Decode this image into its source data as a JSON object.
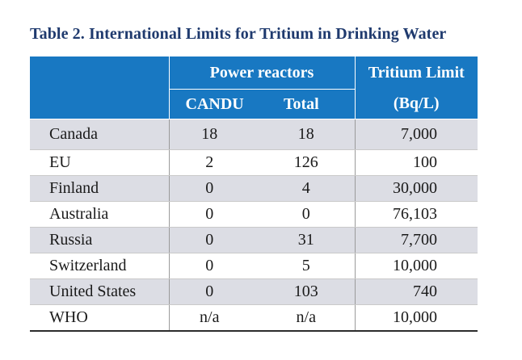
{
  "caption": "Table 2.  International Limits for Tritium in Drinking Water",
  "header": {
    "group_label": "Power reactors",
    "candu_label": "CANDU",
    "total_label": "Total",
    "limit_label_line1": "Tritium Limit",
    "limit_label_line2": "(Bq/L)"
  },
  "rows": [
    {
      "country": "Canada",
      "candu": "18",
      "total": "18",
      "limit": "7,000"
    },
    {
      "country": "EU",
      "candu": "2",
      "total": "126",
      "limit": "100"
    },
    {
      "country": "Finland",
      "candu": "0",
      "total": "4",
      "limit": "30,000"
    },
    {
      "country": "Australia",
      "candu": "0",
      "total": "0",
      "limit": "76,103"
    },
    {
      "country": "Russia",
      "candu": "0",
      "total": "31",
      "limit": "7,700"
    },
    {
      "country": "Switzerland",
      "candu": "0",
      "total": "5",
      "limit": "10,000"
    },
    {
      "country": "United States",
      "candu": "0",
      "total": "103",
      "limit": "740"
    },
    {
      "country": "WHO",
      "candu": "n/a",
      "total": "n/a",
      "limit": "10,000"
    }
  ],
  "colors": {
    "header_bg": "#1878c2",
    "caption_text": "#1f3a6e",
    "shaded_row": "#dcdde4"
  }
}
